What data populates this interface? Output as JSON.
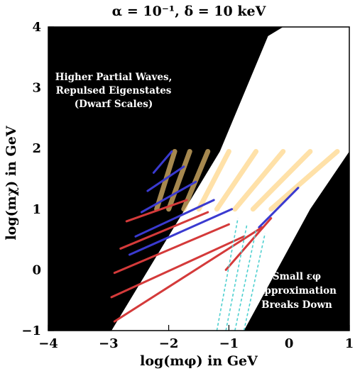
{
  "chart_data": {
    "type": "contour",
    "title": "α = 10⁻¹,  δ = 10 keV",
    "xlabel": "log(mφ) in GeV",
    "ylabel": "log(mχ) in GeV",
    "xlim": [
      -4,
      1
    ],
    "ylim": [
      -1,
      4
    ],
    "xticks": [
      "−4",
      "−3",
      "−2",
      "−1",
      "0",
      "1"
    ],
    "yticks": [
      "−1",
      "0",
      "1",
      "2",
      "3",
      "4"
    ],
    "grid": false,
    "colors": {
      "excluded_region": "#000000",
      "allowed_region": "#ffffff",
      "band_light": "#ffd27a",
      "band_blue": "#3a3ad0",
      "band_red": "#d43a3a",
      "boundary_dashed": "#4fd0d0"
    },
    "annotations": {
      "upper_left": [
        "Higher Partial Waves,",
        "Repulsed Eigenstates",
        "(Dwarf Scales)"
      ],
      "lower_right": [
        "Small εφ",
        "Approximation",
        "Breaks Down"
      ]
    },
    "allowed_region_boundary": [
      [
        -2.95,
        -1.0
      ],
      [
        -1.15,
        1.95
      ],
      [
        -0.35,
        3.85
      ],
      [
        -0.1,
        4.0
      ],
      [
        1.0,
        4.0
      ],
      [
        1.0,
        1.95
      ],
      [
        0.35,
        1.0
      ],
      [
        -0.75,
        -1.0
      ]
    ],
    "resonance_bands": {
      "light": [
        [
          [
            -2.2,
            1.0
          ],
          [
            -1.9,
            1.95
          ]
        ],
        [
          [
            -2.0,
            1.0
          ],
          [
            -1.65,
            1.95
          ]
        ],
        [
          [
            -1.75,
            1.0
          ],
          [
            -1.35,
            1.95
          ]
        ],
        [
          [
            -1.5,
            1.0
          ],
          [
            -1.0,
            1.95
          ]
        ],
        [
          [
            -1.2,
            1.0
          ],
          [
            -0.55,
            1.95
          ]
        ],
        [
          [
            -0.9,
            1.0
          ],
          [
            -0.1,
            1.95
          ]
        ],
        [
          [
            -0.6,
            1.0
          ],
          [
            0.35,
            1.95
          ]
        ],
        [
          [
            -0.3,
            1.0
          ],
          [
            0.8,
            1.95
          ]
        ]
      ],
      "blue": [
        [
          [
            -2.25,
            1.6
          ],
          [
            -1.95,
            1.95
          ]
        ],
        [
          [
            -2.35,
            1.3
          ],
          [
            -1.75,
            1.7
          ]
        ],
        [
          [
            -2.45,
            0.95
          ],
          [
            -1.55,
            1.45
          ]
        ],
        [
          [
            -2.55,
            0.55
          ],
          [
            -1.25,
            1.15
          ]
        ],
        [
          [
            -2.65,
            0.25
          ],
          [
            -0.95,
            1.0
          ]
        ],
        [
          [
            -0.5,
            0.7
          ],
          [
            0.15,
            1.35
          ]
        ]
      ],
      "red": [
        [
          [
            -2.7,
            0.8
          ],
          [
            -1.7,
            1.15
          ]
        ],
        [
          [
            -2.8,
            0.35
          ],
          [
            -1.35,
            0.95
          ]
        ],
        [
          [
            -2.9,
            -0.05
          ],
          [
            -1.0,
            0.75
          ]
        ],
        [
          [
            -2.95,
            -0.45
          ],
          [
            -0.75,
            0.55
          ]
        ],
        [
          [
            -2.9,
            -0.85
          ],
          [
            -0.45,
            0.7
          ]
        ],
        [
          [
            -1.05,
            0.0
          ],
          [
            -0.3,
            0.85
          ]
        ]
      ]
    },
    "boundary_curves_dashed": [
      [
        [
          -1.2,
          -1.0
        ],
        [
          -0.85,
          0.85
        ]
      ],
      [
        [
          -1.05,
          -1.0
        ],
        [
          -0.7,
          0.75
        ]
      ],
      [
        [
          -0.9,
          -1.0
        ],
        [
          -0.55,
          0.65
        ]
      ],
      [
        [
          -0.75,
          -1.0
        ],
        [
          -0.4,
          0.6
        ]
      ]
    ]
  }
}
